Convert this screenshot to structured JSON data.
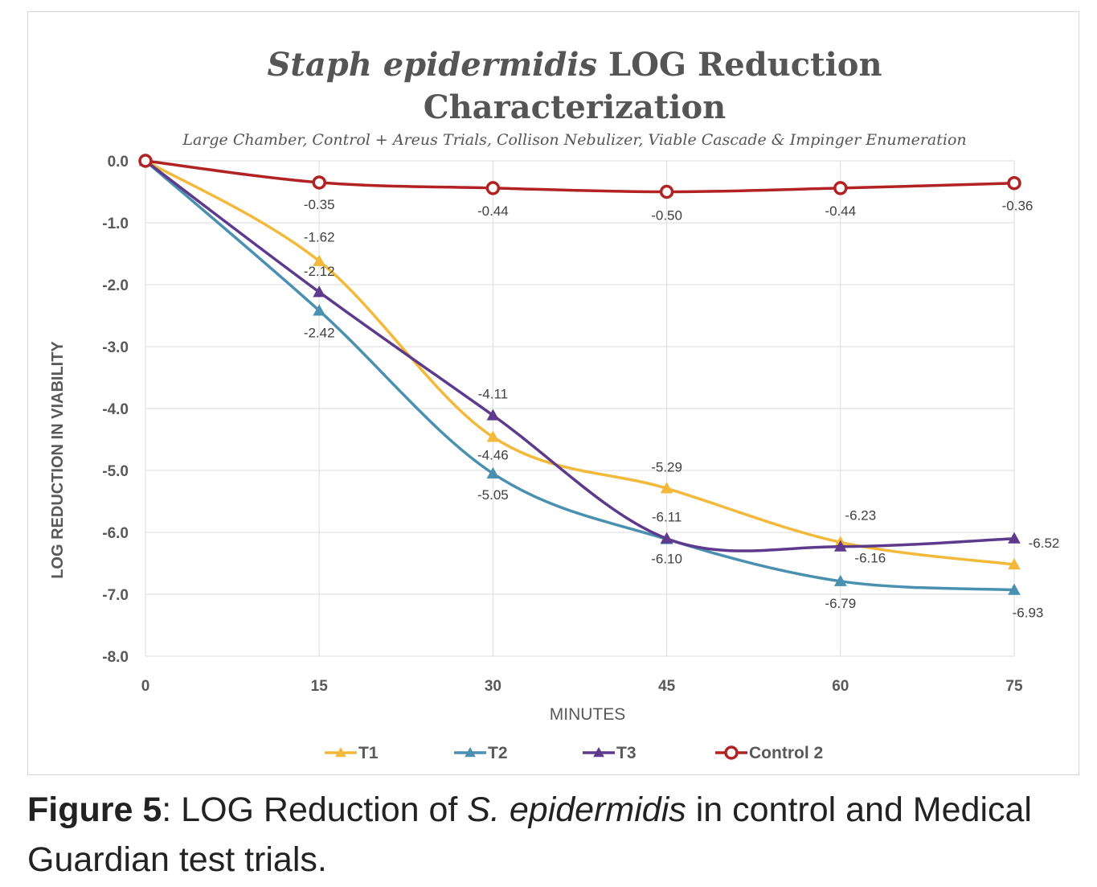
{
  "chart_data": {
    "type": "line",
    "title_italic": "Staph epidermidis",
    "title_rest": " LOG Reduction",
    "title_line2": "Characterization",
    "subtitle": "Large Chamber, Control + Areus Trials, Collison Nebulizer, Viable Cascade & Impinger Enumeration",
    "xlabel": "MINUTES",
    "ylabel": "LOG REDUCTION IN VIABILITY",
    "x": [
      0,
      15,
      30,
      45,
      60,
      75
    ],
    "x_tick_labels": [
      "0",
      "15",
      "30",
      "45",
      "60",
      "75"
    ],
    "ylim": [
      -8.0,
      0.0
    ],
    "y_ticks": [
      0,
      -1,
      -2,
      -3,
      -4,
      -5,
      -6,
      -7,
      -8
    ],
    "y_tick_labels": [
      "0.0",
      "-1.0",
      "-2.0",
      "-3.0",
      "-4.0",
      "-5.0",
      "-6.0",
      "-7.0",
      "-8.0"
    ],
    "grid": true,
    "legend_position": "bottom",
    "series": [
      {
        "name": "T1",
        "color": "#F2B93B",
        "marker": "triangle",
        "values": [
          0,
          -1.62,
          -4.46,
          -5.29,
          -6.16,
          -6.52
        ],
        "data_labels": [
          "",
          "-1.62",
          "-4.46",
          "-5.29",
          "-6.16",
          "-6.52"
        ]
      },
      {
        "name": "T2",
        "color": "#4A90B0",
        "marker": "triangle",
        "values": [
          0,
          -2.42,
          -5.05,
          -6.11,
          -6.79,
          -6.93
        ],
        "data_labels": [
          "",
          "-2.42",
          "-5.05",
          "-6.11",
          "-6.79",
          "-6.93"
        ]
      },
      {
        "name": "T3",
        "color": "#5E3A8C",
        "marker": "triangle",
        "values": [
          0,
          -2.12,
          -4.11,
          -6.1,
          -6.23,
          -6.1
        ],
        "data_labels": [
          "",
          "-2.12",
          "-4.11",
          "-6.10",
          "-6.23",
          ""
        ]
      },
      {
        "name": "Control 2",
        "color": "#B22222",
        "marker": "circle",
        "values": [
          0,
          -0.35,
          -0.44,
          -0.5,
          -0.44,
          -0.36
        ],
        "data_labels": [
          "",
          "-0.35",
          "-0.44",
          "-0.50",
          "-0.44",
          "-0.36"
        ]
      }
    ]
  },
  "caption": {
    "lead": "Figure 5",
    "part1": ": LOG Reduction of ",
    "italic": "S. epidermidis",
    "part2": " in control and Medical Guardian test trials."
  }
}
